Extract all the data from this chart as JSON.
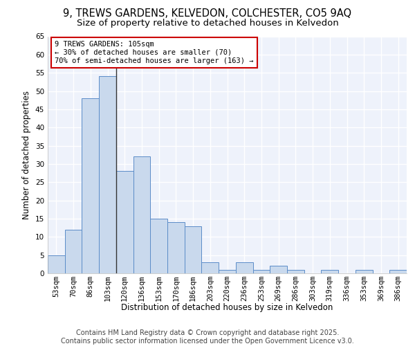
{
  "title_line1": "9, TREWS GARDENS, KELVEDON, COLCHESTER, CO5 9AQ",
  "title_line2": "Size of property relative to detached houses in Kelvedon",
  "xlabel": "Distribution of detached houses by size in Kelvedon",
  "ylabel": "Number of detached properties",
  "categories": [
    "53sqm",
    "70sqm",
    "86sqm",
    "103sqm",
    "120sqm",
    "136sqm",
    "153sqm",
    "170sqm",
    "186sqm",
    "203sqm",
    "220sqm",
    "236sqm",
    "253sqm",
    "269sqm",
    "286sqm",
    "303sqm",
    "319sqm",
    "336sqm",
    "353sqm",
    "369sqm",
    "386sqm"
  ],
  "values": [
    5,
    12,
    48,
    54,
    28,
    32,
    15,
    14,
    13,
    3,
    1,
    3,
    1,
    2,
    1,
    0,
    1,
    0,
    1,
    0,
    1
  ],
  "bar_color": "#c9d9ed",
  "bar_edge_color": "#5b8cc8",
  "highlight_index": 3,
  "highlight_line_color": "#333333",
  "annotation_text": "9 TREWS GARDENS: 105sqm\n← 30% of detached houses are smaller (70)\n70% of semi-detached houses are larger (163) →",
  "annotation_box_color": "#ffffff",
  "annotation_box_edge_color": "#cc0000",
  "ylim": [
    0,
    65
  ],
  "yticks": [
    0,
    5,
    10,
    15,
    20,
    25,
    30,
    35,
    40,
    45,
    50,
    55,
    60,
    65
  ],
  "background_color": "#eef2fb",
  "grid_color": "#ffffff",
  "footer_line1": "Contains HM Land Registry data © Crown copyright and database right 2025.",
  "footer_line2": "Contains public sector information licensed under the Open Government Licence v3.0.",
  "title_fontsize": 10.5,
  "subtitle_fontsize": 9.5,
  "axis_label_fontsize": 8.5,
  "tick_fontsize": 7.5,
  "footer_fontsize": 7,
  "annotation_fontsize": 7.5
}
